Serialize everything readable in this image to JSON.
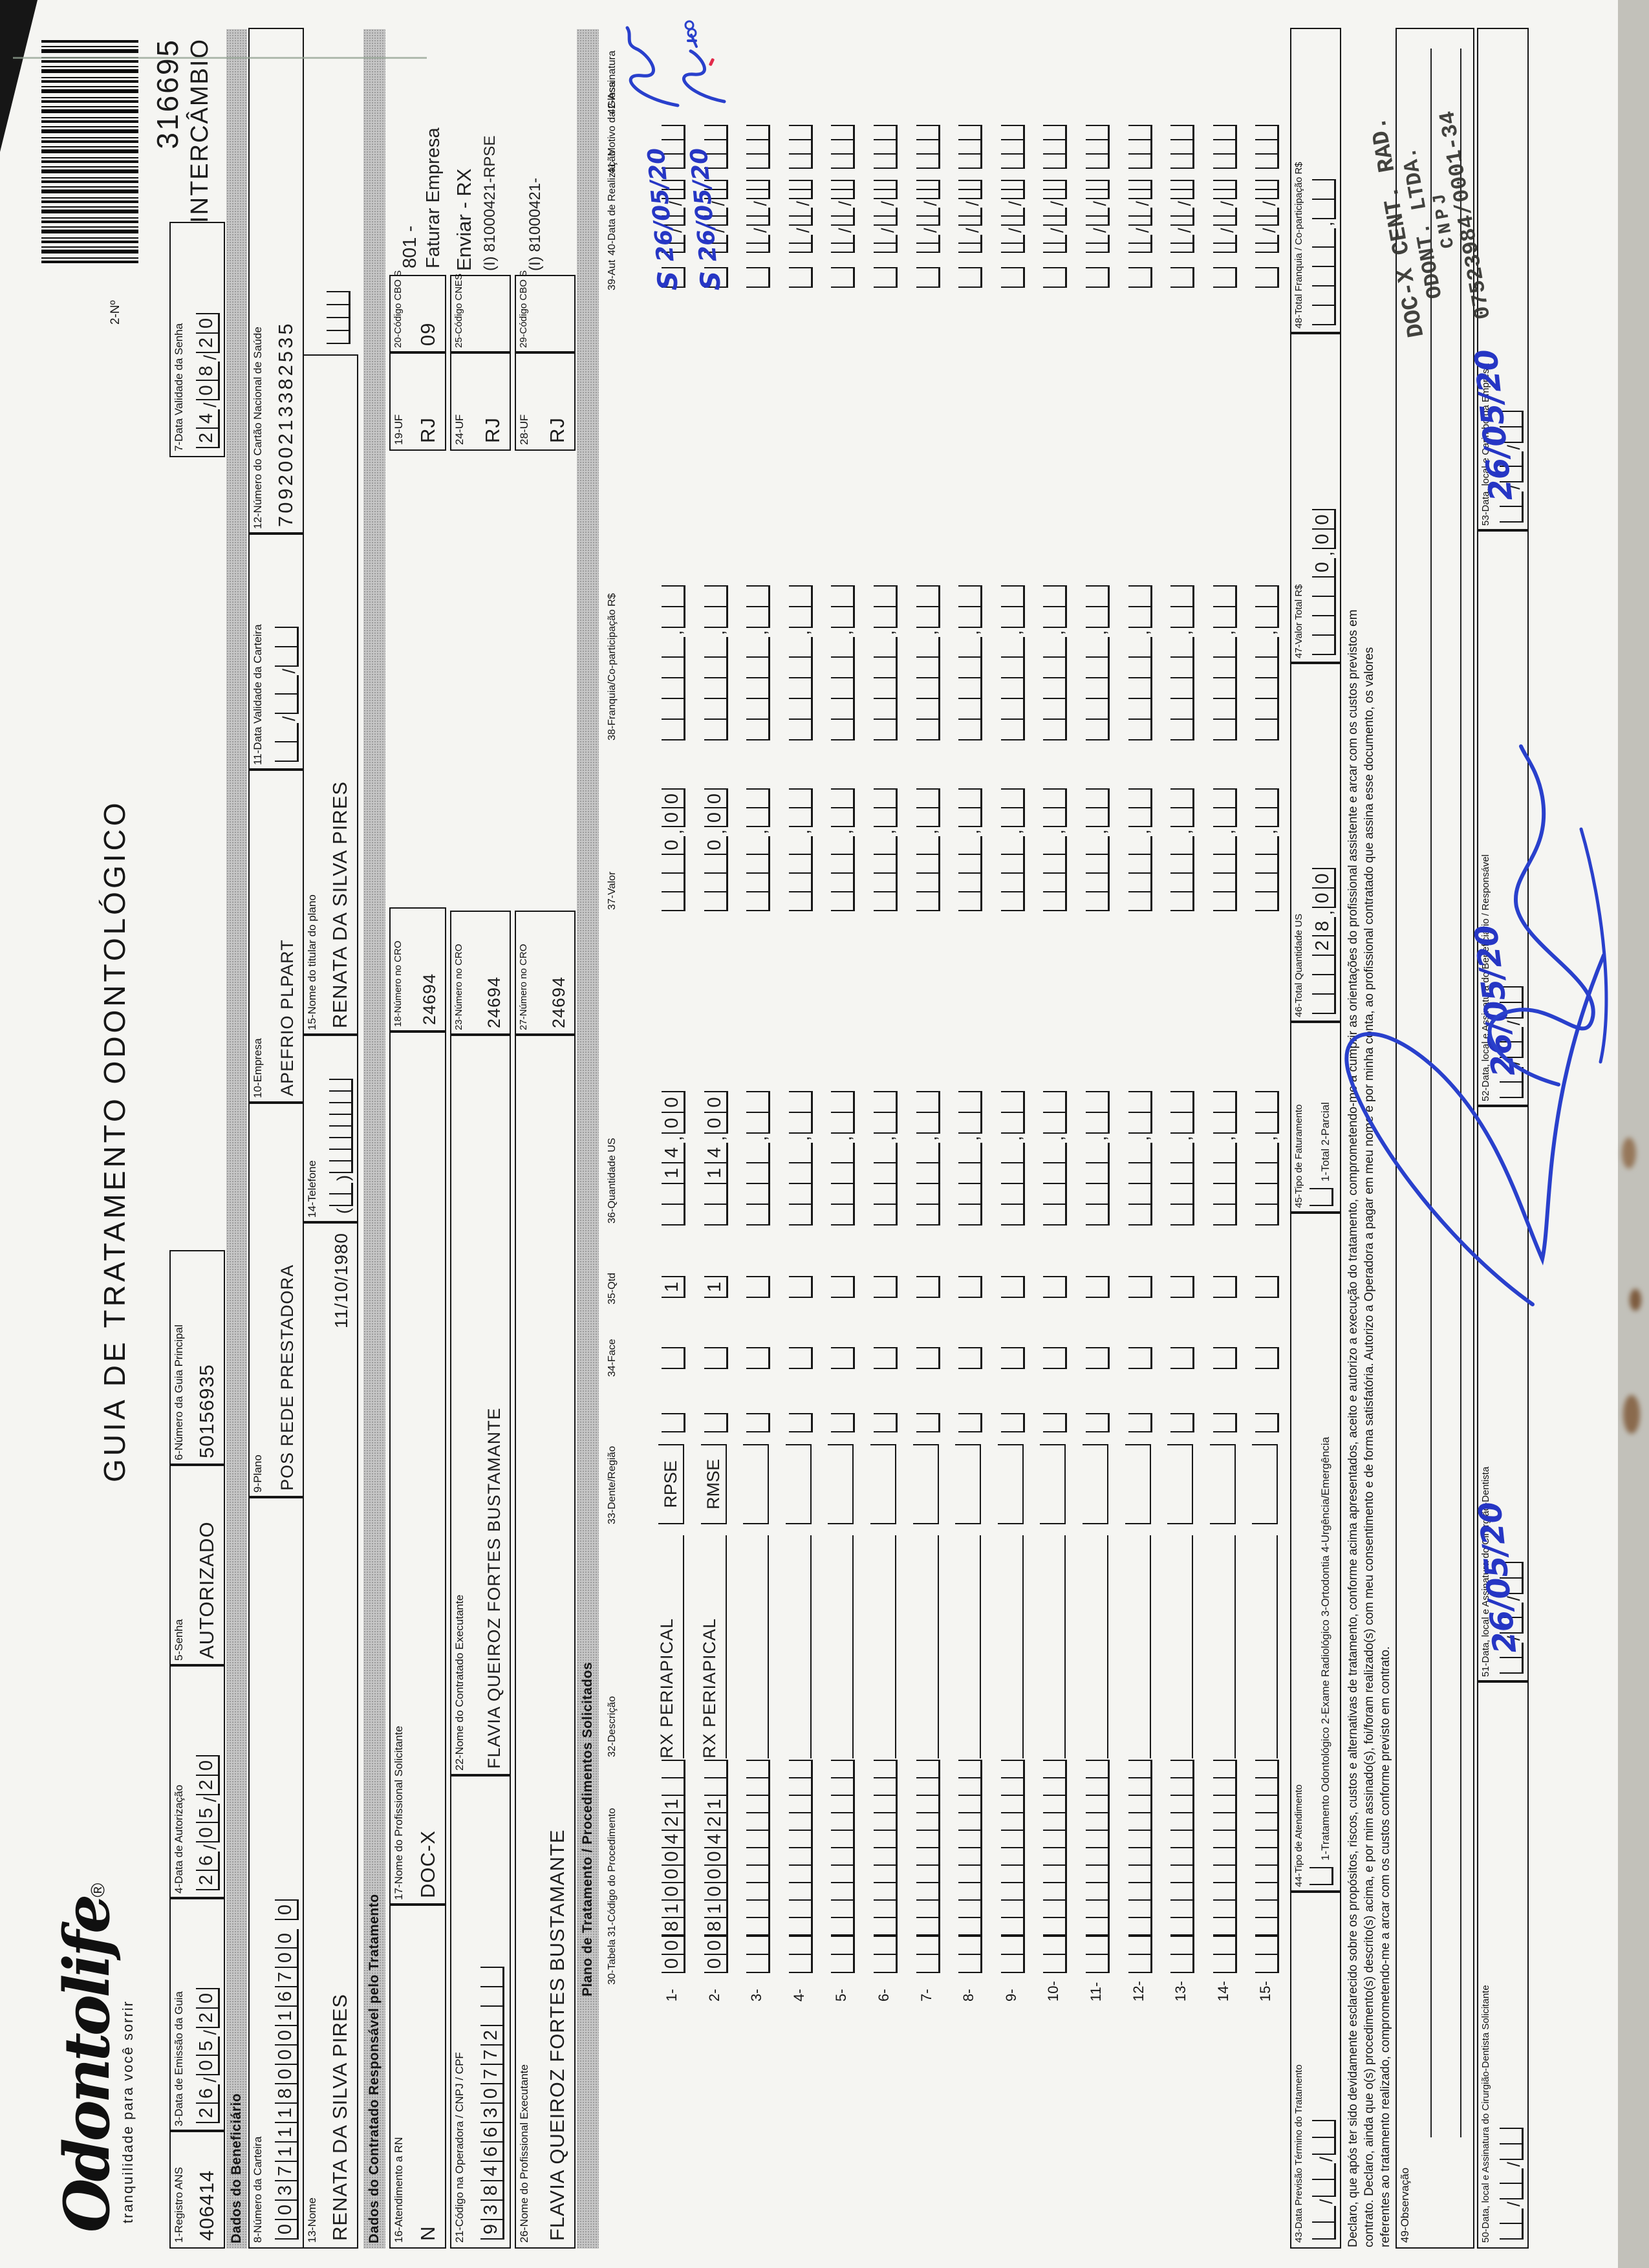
{
  "header": {
    "logo": "Odontolife",
    "logo_reg": "®",
    "tagline": "tranquilidade para você sorrir",
    "title": "GUIA DE TRATAMENTO ODONTOLÓGICO",
    "field2_label": "2-Nº",
    "guide_number": "316695",
    "intercambio": "INTERCÂMBIO"
  },
  "row1": {
    "f1": {
      "label": "1-Registro ANS",
      "value": "406414"
    },
    "f3": {
      "label": "3-Data de Emissão da Guia",
      "comb": [
        "2",
        "6",
        "/",
        "0",
        "5",
        "/",
        "2",
        "0"
      ]
    },
    "f4": {
      "label": "4-Data de Autorização",
      "comb": [
        "2",
        "6",
        "/",
        "0",
        "5",
        "/",
        "2",
        "0"
      ]
    },
    "f5": {
      "label": "5-Senha",
      "value": "AUTORIZADO"
    },
    "f6": {
      "label": "6-Número da Guia Principal",
      "value": "50156935"
    },
    "f7": {
      "label": "7-Data Validade da Senha",
      "comb": [
        "2",
        "4",
        "/",
        "0",
        "8",
        "/",
        "2",
        "0"
      ]
    }
  },
  "beneficiario": {
    "band": "Dados do Beneficiário",
    "f8": {
      "label": "8-Número da Carteira",
      "comb": [
        "0",
        "0",
        "3",
        "7",
        "1",
        "1",
        "1",
        "8",
        "0",
        "0",
        "0",
        "1",
        "6",
        "7",
        "0",
        "0",
        " ",
        "0"
      ]
    },
    "f9": {
      "label": "9-Plano",
      "value": "POS REDE PRESTADORA"
    },
    "f10": {
      "label": "10-Empresa",
      "value": "APEFRIO PLPART"
    },
    "f11": {
      "label": "11-Data Validade da Carteira",
      "comb": [
        "",
        "",
        "/",
        "",
        "",
        "/",
        "",
        ""
      ]
    },
    "f12": {
      "label": "12-Número do Cartão Nacional de Saúde",
      "value": "709200213382535"
    },
    "f13": {
      "label": "13-Nome",
      "value": "RENATA DA SILVA PIRES",
      "birth": "11/10/1980"
    },
    "f14": {
      "label": "14-Telefone",
      "comb": [
        "(",
        "",
        "",
        ")",
        "",
        "",
        "",
        "",
        "",
        "",
        "",
        ""
      ]
    },
    "f15": {
      "label": "15-Nome do titular do plano",
      "value": "RENATA DA SILVA PIRES",
      "endcomb": [
        "",
        "",
        "",
        ""
      ]
    }
  },
  "contratado": {
    "band": "Dados do Contratado Responsável pelo Tratamento",
    "f16": {
      "label": "16-Atendimento a RN",
      "value": "N"
    },
    "f17": {
      "label": "17-Nome do Profissional Solicitante",
      "value": "DOC-X"
    },
    "f18": {
      "label": "18-Número no CRO",
      "value": "24694"
    },
    "f19": {
      "label": "19-UF",
      "value": "RJ"
    },
    "f20": {
      "label": "20-Código CBO S",
      "value": "09"
    },
    "f21": {
      "label": "21-Código na Operadora / CNPJ / CPF",
      "comb": [
        "9",
        "3",
        "8",
        "4",
        "6",
        "6",
        "3",
        "0",
        "7",
        "7",
        "2",
        "",
        "",
        ""
      ]
    },
    "f22": {
      "label": "22-Nome do Contratado Executante",
      "value": "FLAVIA QUEIROZ FORTES BUSTAMANTE"
    },
    "f23": {
      "label": "23-Número no CRO",
      "value": "24694"
    },
    "f24": {
      "label": "24-UF",
      "value": "RJ"
    },
    "f25": {
      "label": "25-Código CNES",
      "value": ""
    },
    "f26": {
      "label": "26-Nome do Profissional Executante",
      "value": "FLAVIA QUEIROZ FORTES BUSTAMANTE"
    },
    "f27": {
      "label": "27-Número no CRO",
      "value": "24694"
    },
    "f28": {
      "label": "28-UF",
      "value": "RJ"
    },
    "f29": {
      "label": "29-Código CBO S",
      "value": ""
    },
    "notes": {
      "n801a": "801 -",
      "n801b": "Faturar Empresa",
      "enviar": "Enviar - RX",
      "cod1": "(I) 81000421-RPSE",
      "cod2": "(I) 81000421-"
    }
  },
  "plano": {
    "band": "Plano de Tratamento / Procedimentos Solicitados",
    "cols": {
      "c30": "30-Tabela",
      "c31": "31-Código do Procedimento",
      "c32": "32-Descrição",
      "c33": "33-Dente/Região",
      "c34": "34-Face",
      "c35": "35-Qtd",
      "c36": "36-Quantidade US",
      "c37": "37-Valor",
      "c38": "38-Franquia/Co-participação R$",
      "c39": "39-Aut",
      "c40": "40-Data de Realização",
      "c41": "41- Motivo da Glosa",
      "c42": "42-Assinatura"
    },
    "rows": [
      {
        "num": "1-",
        "tabela": [
          "0",
          "0"
        ],
        "codigo": [
          "8",
          "1",
          "0",
          "0",
          "0",
          "4",
          "2",
          "1",
          "",
          ""
        ],
        "desc": "RX PERIAPICAL",
        "dente": "RPSE",
        "qtd": [
          "1"
        ],
        "us": [
          "",
          "",
          "1",
          "4",
          ",",
          "0",
          "0"
        ],
        "valor": [
          "",
          "",
          "",
          "0",
          ",",
          "0",
          "0"
        ],
        "aut_hand": "S",
        "data_hand": "26/05/20",
        "rubric": true
      },
      {
        "num": "2-",
        "tabela": [
          "0",
          "0"
        ],
        "codigo": [
          "8",
          "1",
          "0",
          "0",
          "0",
          "4",
          "2",
          "1",
          "",
          ""
        ],
        "desc": "RX PERIAPICAL",
        "dente": "RMSE",
        "qtd": [
          "1"
        ],
        "us": [
          "",
          "",
          "1",
          "4",
          ",",
          "0",
          "0"
        ],
        "valor": [
          "",
          "",
          "",
          "0",
          ",",
          "0",
          "0"
        ],
        "aut_hand": "S",
        "data_hand": "26/05/20",
        "rubric": true
      },
      {
        "num": "3-"
      },
      {
        "num": "4-"
      },
      {
        "num": "5-"
      },
      {
        "num": "6-"
      },
      {
        "num": "7-"
      },
      {
        "num": "8-"
      },
      {
        "num": "9-"
      },
      {
        "num": "10-"
      },
      {
        "num": "11-"
      },
      {
        "num": "12-"
      },
      {
        "num": "13-"
      },
      {
        "num": "14-"
      },
      {
        "num": "15-"
      }
    ]
  },
  "totais": {
    "f43": {
      "label": "43-Data Previsão Término do Tratamento",
      "comb": [
        "",
        "",
        "/",
        "",
        "",
        "/",
        "",
        ""
      ]
    },
    "f44": {
      "label": "44-Tipo de Atendimento",
      "options": "1-Tratamento Odontológico  2-Exame Radiológico  3-Ortodontia  4-Urgência/Emergência"
    },
    "f45": {
      "label": "45-Tipo de Faturamento",
      "options": "1-Total  2-Parcial"
    },
    "f46": {
      "label": "46-Total Quantidade US",
      "comb": [
        "",
        "",
        "",
        "2",
        "8",
        ",",
        "0",
        "0"
      ]
    },
    "f47": {
      "label": "47-Valor Total R$",
      "comb": [
        "",
        "",
        "",
        "",
        "0",
        ",",
        "0",
        "0"
      ]
    },
    "f48": {
      "label": "48-Total Franquia / Co-participação R$",
      "comb": [
        "",
        "",
        "",
        "",
        "",
        ",",
        "",
        ""
      ]
    }
  },
  "declaracao": {
    "lines": [
      "Declaro, que após ter sido devidamente esclarecido sobre os propósitos, riscos, custos e alternativas de tratamento, conforme acima apresentados, aceito e autorizo a execução do tratamento, comprometendo-me a cumprir as orientações do profissional assistente e arcar com os custos previstos em",
      "contrato. Declaro, ainda que o(s) procedimento(s) descrito(s) acima, e por mim assinado(s), foi/foram realizado(s) com meu consentimento e de forma satisfatória. Autorizo a Operadora a pagar em meu nome e por minha conta, ao profissional contratado que assina esse documento, os valores",
      "referentes ao tratamento realizado, comprometendo-me a arcar com os custos conforme previsto em contrato."
    ]
  },
  "observacao": {
    "label": "49-Observação"
  },
  "assinaturas": {
    "f50": {
      "label": "50-Data, local e Assinatura do Cirurgião-Dentista Solicitante",
      "comb": [
        "",
        "",
        "/",
        "",
        "",
        "/",
        "",
        ""
      ]
    },
    "f51": {
      "label": "51-Data, local e Assinatura do Cirurgião-Dentista",
      "comb": [
        "",
        "",
        "/",
        "",
        "",
        "/",
        "",
        ""
      ],
      "hand": "26/05/20"
    },
    "f52": {
      "label": "52-Data, local e Assinatura do Beneficiário / Responsável",
      "comb": [
        "",
        "",
        "/",
        "",
        "",
        "/",
        "",
        ""
      ],
      "hand": "26/05/20"
    },
    "f53": {
      "label": "53-Data, local e Carimbo da Empresa",
      "comb": [
        "",
        "",
        "/",
        "",
        "",
        "/",
        "",
        ""
      ],
      "hand": "26/05/20"
    }
  },
  "stamp": {
    "lines": [
      "DOC-X CENT. RAD.",
      "ODONT. LTDA.",
      "CNPJ",
      "07523984/0001-34"
    ]
  }
}
